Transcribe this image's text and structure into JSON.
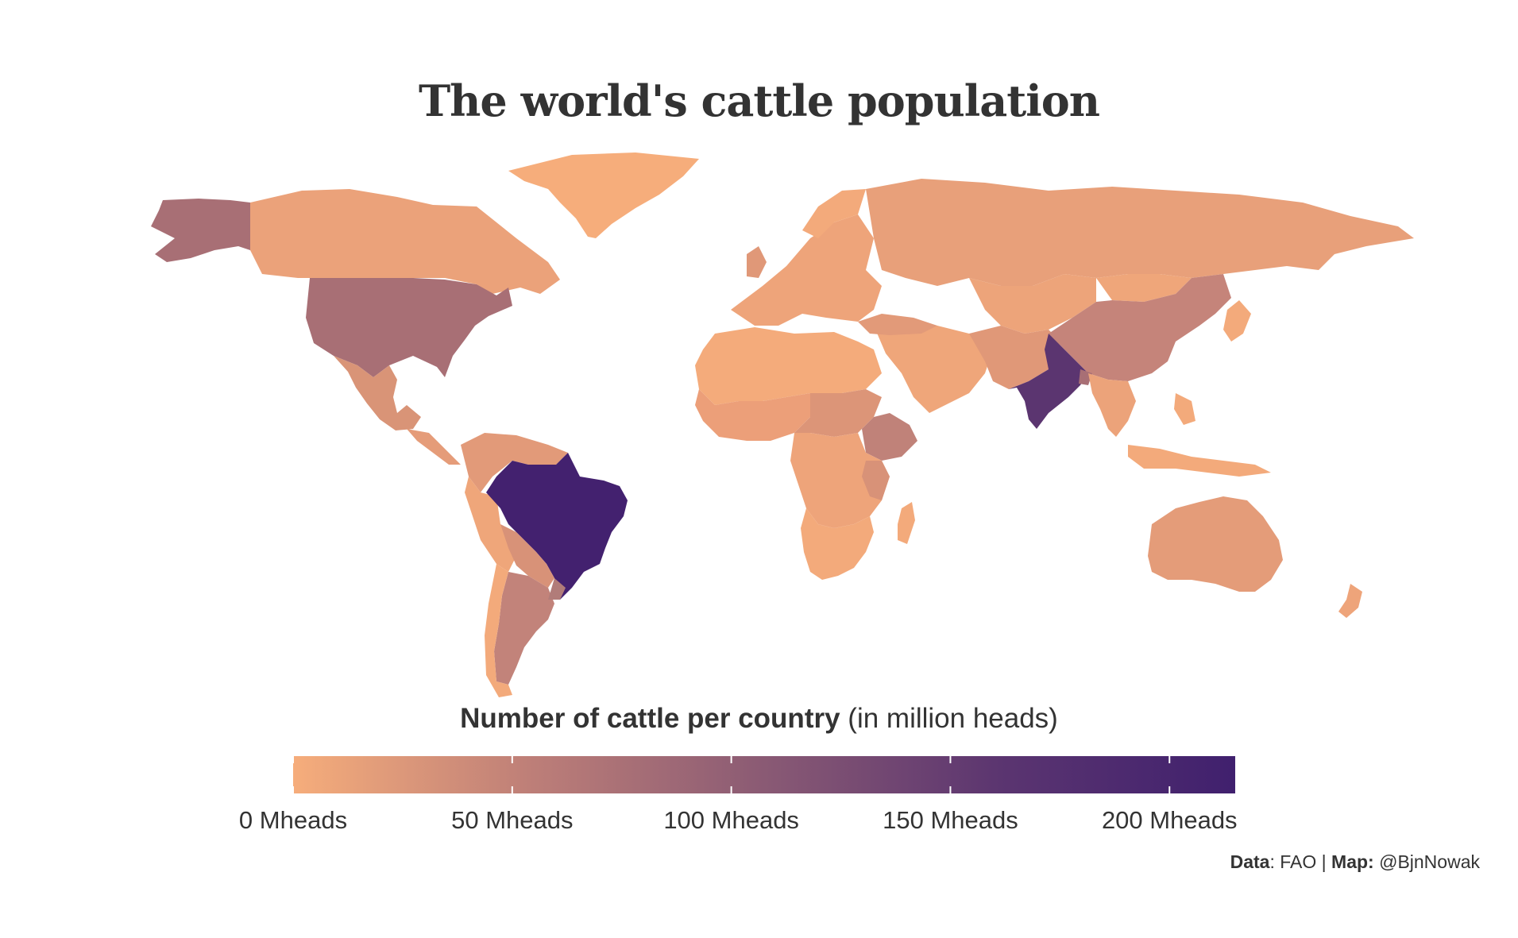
{
  "title": "The world's cattle population",
  "legend": {
    "title_bold": "Number of cattle per country",
    "title_rest": " (in million heads)",
    "ticks": [
      {
        "value": 0,
        "label": "0 Mheads"
      },
      {
        "value": 50,
        "label": "50 Mheads"
      },
      {
        "value": 100,
        "label": "100 Mheads"
      },
      {
        "value": 150,
        "label": "150 Mheads"
      },
      {
        "value": 200,
        "label": "200 Mheads"
      }
    ],
    "min": 0,
    "max": 215,
    "colors": [
      "#f6ad7b",
      "#be7f78",
      "#8a5a74",
      "#5b3570",
      "#40206e"
    ]
  },
  "caption": {
    "data_label": "Data",
    "data_value": ": FAO | ",
    "map_label": "Map:",
    "map_value": " @BjnNowak"
  },
  "chart_data": {
    "type": "choropleth",
    "variable": "Number of cattle per country (million heads)",
    "regions": [
      {
        "name": "Brazil",
        "value": 215
      },
      {
        "name": "India",
        "value": 194
      },
      {
        "name": "United States",
        "value": 94
      },
      {
        "name": "China",
        "value": 63
      },
      {
        "name": "Argentina",
        "value": 54
      },
      {
        "name": "Ethiopia",
        "value": 63
      },
      {
        "name": "Pakistan",
        "value": 50
      },
      {
        "name": "Mexico",
        "value": 35
      },
      {
        "name": "Australia",
        "value": 24
      },
      {
        "name": "Russia",
        "value": 18
      },
      {
        "name": "Canada",
        "value": 11
      },
      {
        "name": "Sudan",
        "value": 31
      },
      {
        "name": "Colombia",
        "value": 28
      },
      {
        "name": "Tanzania",
        "value": 28
      },
      {
        "name": "Bangladesh",
        "value": 24
      }
    ]
  }
}
